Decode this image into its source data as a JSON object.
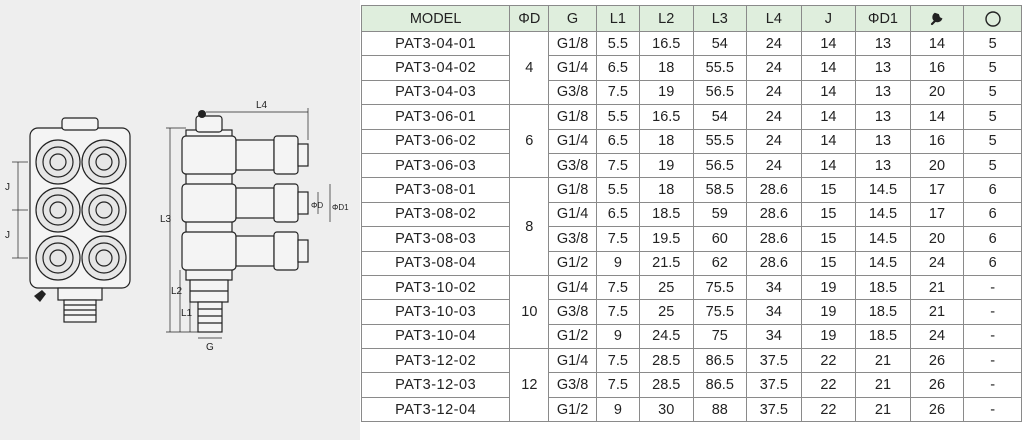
{
  "table": {
    "headers": [
      "MODEL",
      "ΦD",
      "G",
      "L1",
      "L2",
      "L3",
      "L4",
      "J",
      "ΦD1",
      "wrench-icon",
      "o-ring-icon"
    ],
    "rows": [
      {
        "model": "PAT3-04-01",
        "g": "G1/8",
        "l1": "5.5",
        "l2": "16.5",
        "l3": "54",
        "l4": "24",
        "j": "14",
        "d1": "13",
        "wrench": "14",
        "ring": "5"
      },
      {
        "model": "PAT3-04-02",
        "g": "G1/4",
        "l1": "6.5",
        "l2": "18",
        "l3": "55.5",
        "l4": "24",
        "j": "14",
        "d1": "13",
        "wrench": "16",
        "ring": "5"
      },
      {
        "model": "PAT3-04-03",
        "g": "G3/8",
        "l1": "7.5",
        "l2": "19",
        "l3": "56.5",
        "l4": "24",
        "j": "14",
        "d1": "13",
        "wrench": "20",
        "ring": "5"
      },
      {
        "model": "PAT3-06-01",
        "g": "G1/8",
        "l1": "5.5",
        "l2": "16.5",
        "l3": "54",
        "l4": "24",
        "j": "14",
        "d1": "13",
        "wrench": "14",
        "ring": "5"
      },
      {
        "model": "PAT3-06-02",
        "g": "G1/4",
        "l1": "6.5",
        "l2": "18",
        "l3": "55.5",
        "l4": "24",
        "j": "14",
        "d1": "13",
        "wrench": "16",
        "ring": "5"
      },
      {
        "model": "PAT3-06-03",
        "g": "G3/8",
        "l1": "7.5",
        "l2": "19",
        "l3": "56.5",
        "l4": "24",
        "j": "14",
        "d1": "13",
        "wrench": "20",
        "ring": "5"
      },
      {
        "model": "PAT3-08-01",
        "g": "G1/8",
        "l1": "5.5",
        "l2": "18",
        "l3": "58.5",
        "l4": "28.6",
        "j": "15",
        "d1": "14.5",
        "wrench": "17",
        "ring": "6"
      },
      {
        "model": "PAT3-08-02",
        "g": "G1/4",
        "l1": "6.5",
        "l2": "18.5",
        "l3": "59",
        "l4": "28.6",
        "j": "15",
        "d1": "14.5",
        "wrench": "17",
        "ring": "6"
      },
      {
        "model": "PAT3-08-03",
        "g": "G3/8",
        "l1": "7.5",
        "l2": "19.5",
        "l3": "60",
        "l4": "28.6",
        "j": "15",
        "d1": "14.5",
        "wrench": "20",
        "ring": "6"
      },
      {
        "model": "PAT3-08-04",
        "g": "G1/2",
        "l1": "9",
        "l2": "21.5",
        "l3": "62",
        "l4": "28.6",
        "j": "15",
        "d1": "14.5",
        "wrench": "24",
        "ring": "6"
      },
      {
        "model": "PAT3-10-02",
        "g": "G1/4",
        "l1": "7.5",
        "l2": "25",
        "l3": "75.5",
        "l4": "34",
        "j": "19",
        "d1": "18.5",
        "wrench": "21",
        "ring": "-"
      },
      {
        "model": "PAT3-10-03",
        "g": "G3/8",
        "l1": "7.5",
        "l2": "25",
        "l3": "75.5",
        "l4": "34",
        "j": "19",
        "d1": "18.5",
        "wrench": "21",
        "ring": "-"
      },
      {
        "model": "PAT3-10-04",
        "g": "G1/2",
        "l1": "9",
        "l2": "24.5",
        "l3": "75",
        "l4": "34",
        "j": "19",
        "d1": "18.5",
        "wrench": "24",
        "ring": "-"
      },
      {
        "model": "PAT3-12-02",
        "g": "G1/4",
        "l1": "7.5",
        "l2": "28.5",
        "l3": "86.5",
        "l4": "37.5",
        "j": "22",
        "d1": "21",
        "wrench": "26",
        "ring": "-"
      },
      {
        "model": "PAT3-12-03",
        "g": "G3/8",
        "l1": "7.5",
        "l2": "28.5",
        "l3": "86.5",
        "l4": "37.5",
        "j": "22",
        "d1": "21",
        "wrench": "26",
        "ring": "-"
      },
      {
        "model": "PAT3-12-04",
        "g": "G1/2",
        "l1": "9",
        "l2": "30",
        "l3": "88",
        "l4": "37.5",
        "j": "22",
        "d1": "21",
        "wrench": "26",
        "ring": "-"
      }
    ],
    "groups": [
      {
        "d": "4",
        "rows": 3
      },
      {
        "d": "6",
        "rows": 3
      },
      {
        "d": "8",
        "rows": 4
      },
      {
        "d": "10",
        "rows": 3
      },
      {
        "d": "12",
        "rows": 3
      }
    ]
  },
  "drawing": {
    "labels": {
      "l4": "L4",
      "l3": "L3",
      "l2": "L2",
      "l1": "L1",
      "g": "G",
      "j1": "J",
      "j2": "J",
      "d": "ΦD",
      "d1": "ΦD1"
    }
  },
  "colors": {
    "header_bg": "#dfeedd",
    "panel_bg": "#eeeeee",
    "grid": "#8a8a8a"
  }
}
